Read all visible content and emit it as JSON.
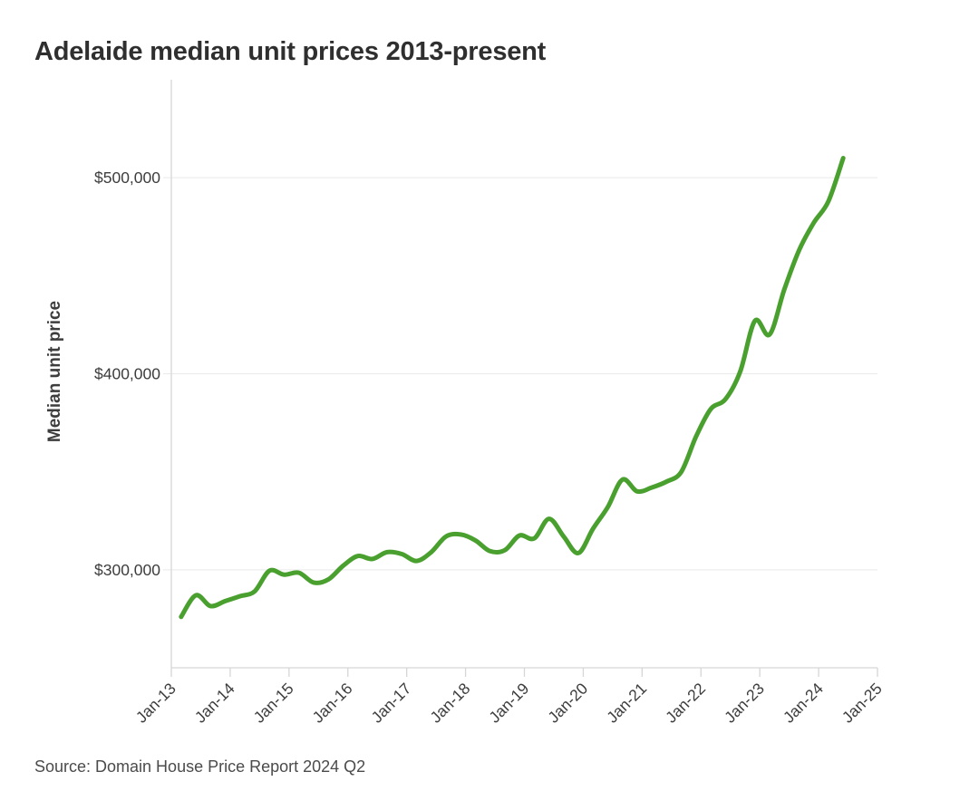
{
  "page": {
    "title": "Adelaide median unit prices 2013-present",
    "source_note": "Source: Domain House Price Report 2024 Q2"
  },
  "chart_data": {
    "type": "line",
    "title": "Adelaide median unit prices 2013-present",
    "xlabel": "",
    "ylabel": "Median unit price",
    "source_note": "Source: Domain House Price Report 2024 Q2",
    "xlim": [
      2013,
      2025
    ],
    "ylim": [
      250000,
      550000
    ],
    "grid": "horizontal",
    "legend": "none",
    "x_ticks": [
      {
        "t": 2013,
        "label": "Jan-13"
      },
      {
        "t": 2014,
        "label": "Jan-14"
      },
      {
        "t": 2015,
        "label": "Jan-15"
      },
      {
        "t": 2016,
        "label": "Jan-16"
      },
      {
        "t": 2017,
        "label": "Jan-17"
      },
      {
        "t": 2018,
        "label": "Jan-18"
      },
      {
        "t": 2019,
        "label": "Jan-19"
      },
      {
        "t": 2020,
        "label": "Jan-20"
      },
      {
        "t": 2021,
        "label": "Jan-21"
      },
      {
        "t": 2022,
        "label": "Jan-22"
      },
      {
        "t": 2023,
        "label": "Jan-23"
      },
      {
        "t": 2024,
        "label": "Jan-24"
      },
      {
        "t": 2025,
        "label": "Jan-25"
      }
    ],
    "y_ticks": [
      {
        "v": 300000,
        "label": "$300,000"
      },
      {
        "v": 400000,
        "label": "$400,000"
      },
      {
        "v": 500000,
        "label": "$500,000"
      }
    ],
    "series": [
      {
        "name": "Adelaide median unit price (quarterly)",
        "color": "#4aa02e",
        "points": [
          [
            2013.167,
            276000
          ],
          [
            2013.417,
            287000
          ],
          [
            2013.667,
            281500
          ],
          [
            2013.917,
            284000
          ],
          [
            2014.167,
            286500
          ],
          [
            2014.417,
            289000
          ],
          [
            2014.667,
            299500
          ],
          [
            2014.917,
            297500
          ],
          [
            2015.167,
            298500
          ],
          [
            2015.417,
            293500
          ],
          [
            2015.667,
            295000
          ],
          [
            2015.917,
            302000
          ],
          [
            2016.167,
            307000
          ],
          [
            2016.417,
            305500
          ],
          [
            2016.667,
            309000
          ],
          [
            2016.917,
            308000
          ],
          [
            2017.167,
            304500
          ],
          [
            2017.417,
            309000
          ],
          [
            2017.667,
            317000
          ],
          [
            2017.917,
            318000
          ],
          [
            2018.167,
            315000
          ],
          [
            2018.417,
            309500
          ],
          [
            2018.667,
            310000
          ],
          [
            2018.917,
            317500
          ],
          [
            2019.167,
            316000
          ],
          [
            2019.417,
            326000
          ],
          [
            2019.667,
            317000
          ],
          [
            2019.917,
            308500
          ],
          [
            2020.167,
            321000
          ],
          [
            2020.417,
            332000
          ],
          [
            2020.667,
            346000
          ],
          [
            2020.917,
            340000
          ],
          [
            2021.167,
            342000
          ],
          [
            2021.417,
            345000
          ],
          [
            2021.667,
            350000
          ],
          [
            2021.917,
            368000
          ],
          [
            2022.167,
            382000
          ],
          [
            2022.417,
            387000
          ],
          [
            2022.667,
            401000
          ],
          [
            2022.917,
            427000
          ],
          [
            2023.167,
            420000
          ],
          [
            2023.417,
            443000
          ],
          [
            2023.667,
            463000
          ],
          [
            2023.917,
            477000
          ],
          [
            2024.167,
            488000
          ],
          [
            2024.417,
            510000
          ]
        ]
      }
    ]
  }
}
